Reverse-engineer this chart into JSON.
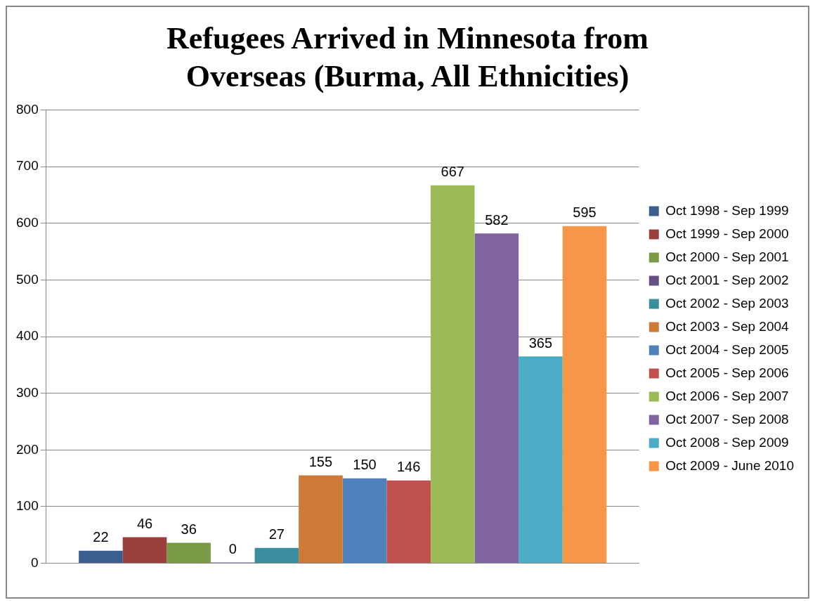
{
  "chart_data": {
    "type": "bar",
    "title": "Refugees Arrived in Minnesota from Overseas (Burma, All Ethnicities)",
    "categories": [
      null
    ],
    "series": [
      {
        "name": "Oct 1998 - Sep 1999",
        "color": "#3a5f8f",
        "values": [
          22
        ]
      },
      {
        "name": "Oct 1999 - Sep 2000",
        "color": "#9b3f3c",
        "values": [
          46
        ]
      },
      {
        "name": "Oct 2000 - Sep 2001",
        "color": "#7a9a45",
        "values": [
          36
        ]
      },
      {
        "name": "Oct 2001 - Sep 2002",
        "color": "#664f86",
        "values": [
          0
        ]
      },
      {
        "name": "Oct 2002 - Sep 2003",
        "color": "#3a8d9f",
        "values": [
          27
        ]
      },
      {
        "name": "Oct 2003 - Sep 2004",
        "color": "#cc7a36",
        "values": [
          155
        ]
      },
      {
        "name": "Oct 2004 - Sep 2005",
        "color": "#4f81bd",
        "values": [
          150
        ]
      },
      {
        "name": "Oct 2005 - Sep 2006",
        "color": "#c0504d",
        "values": [
          146
        ]
      },
      {
        "name": "Oct 2006 - Sep 2007",
        "color": "#9bbb59",
        "values": [
          667
        ]
      },
      {
        "name": "Oct 2007 - Sep 2008",
        "color": "#8064a2",
        "values": [
          582
        ]
      },
      {
        "name": "Oct 2008 - Sep 2009",
        "color": "#4bacc6",
        "values": [
          365
        ]
      },
      {
        "name": "Oct 2009 - June 2010",
        "color": "#f79646",
        "values": [
          595
        ]
      }
    ],
    "ylim": [
      0,
      800
    ],
    "yticks": [
      0,
      100,
      200,
      300,
      400,
      500,
      600,
      700,
      800
    ],
    "grid": "y",
    "legend": "right",
    "data_labels": true
  }
}
